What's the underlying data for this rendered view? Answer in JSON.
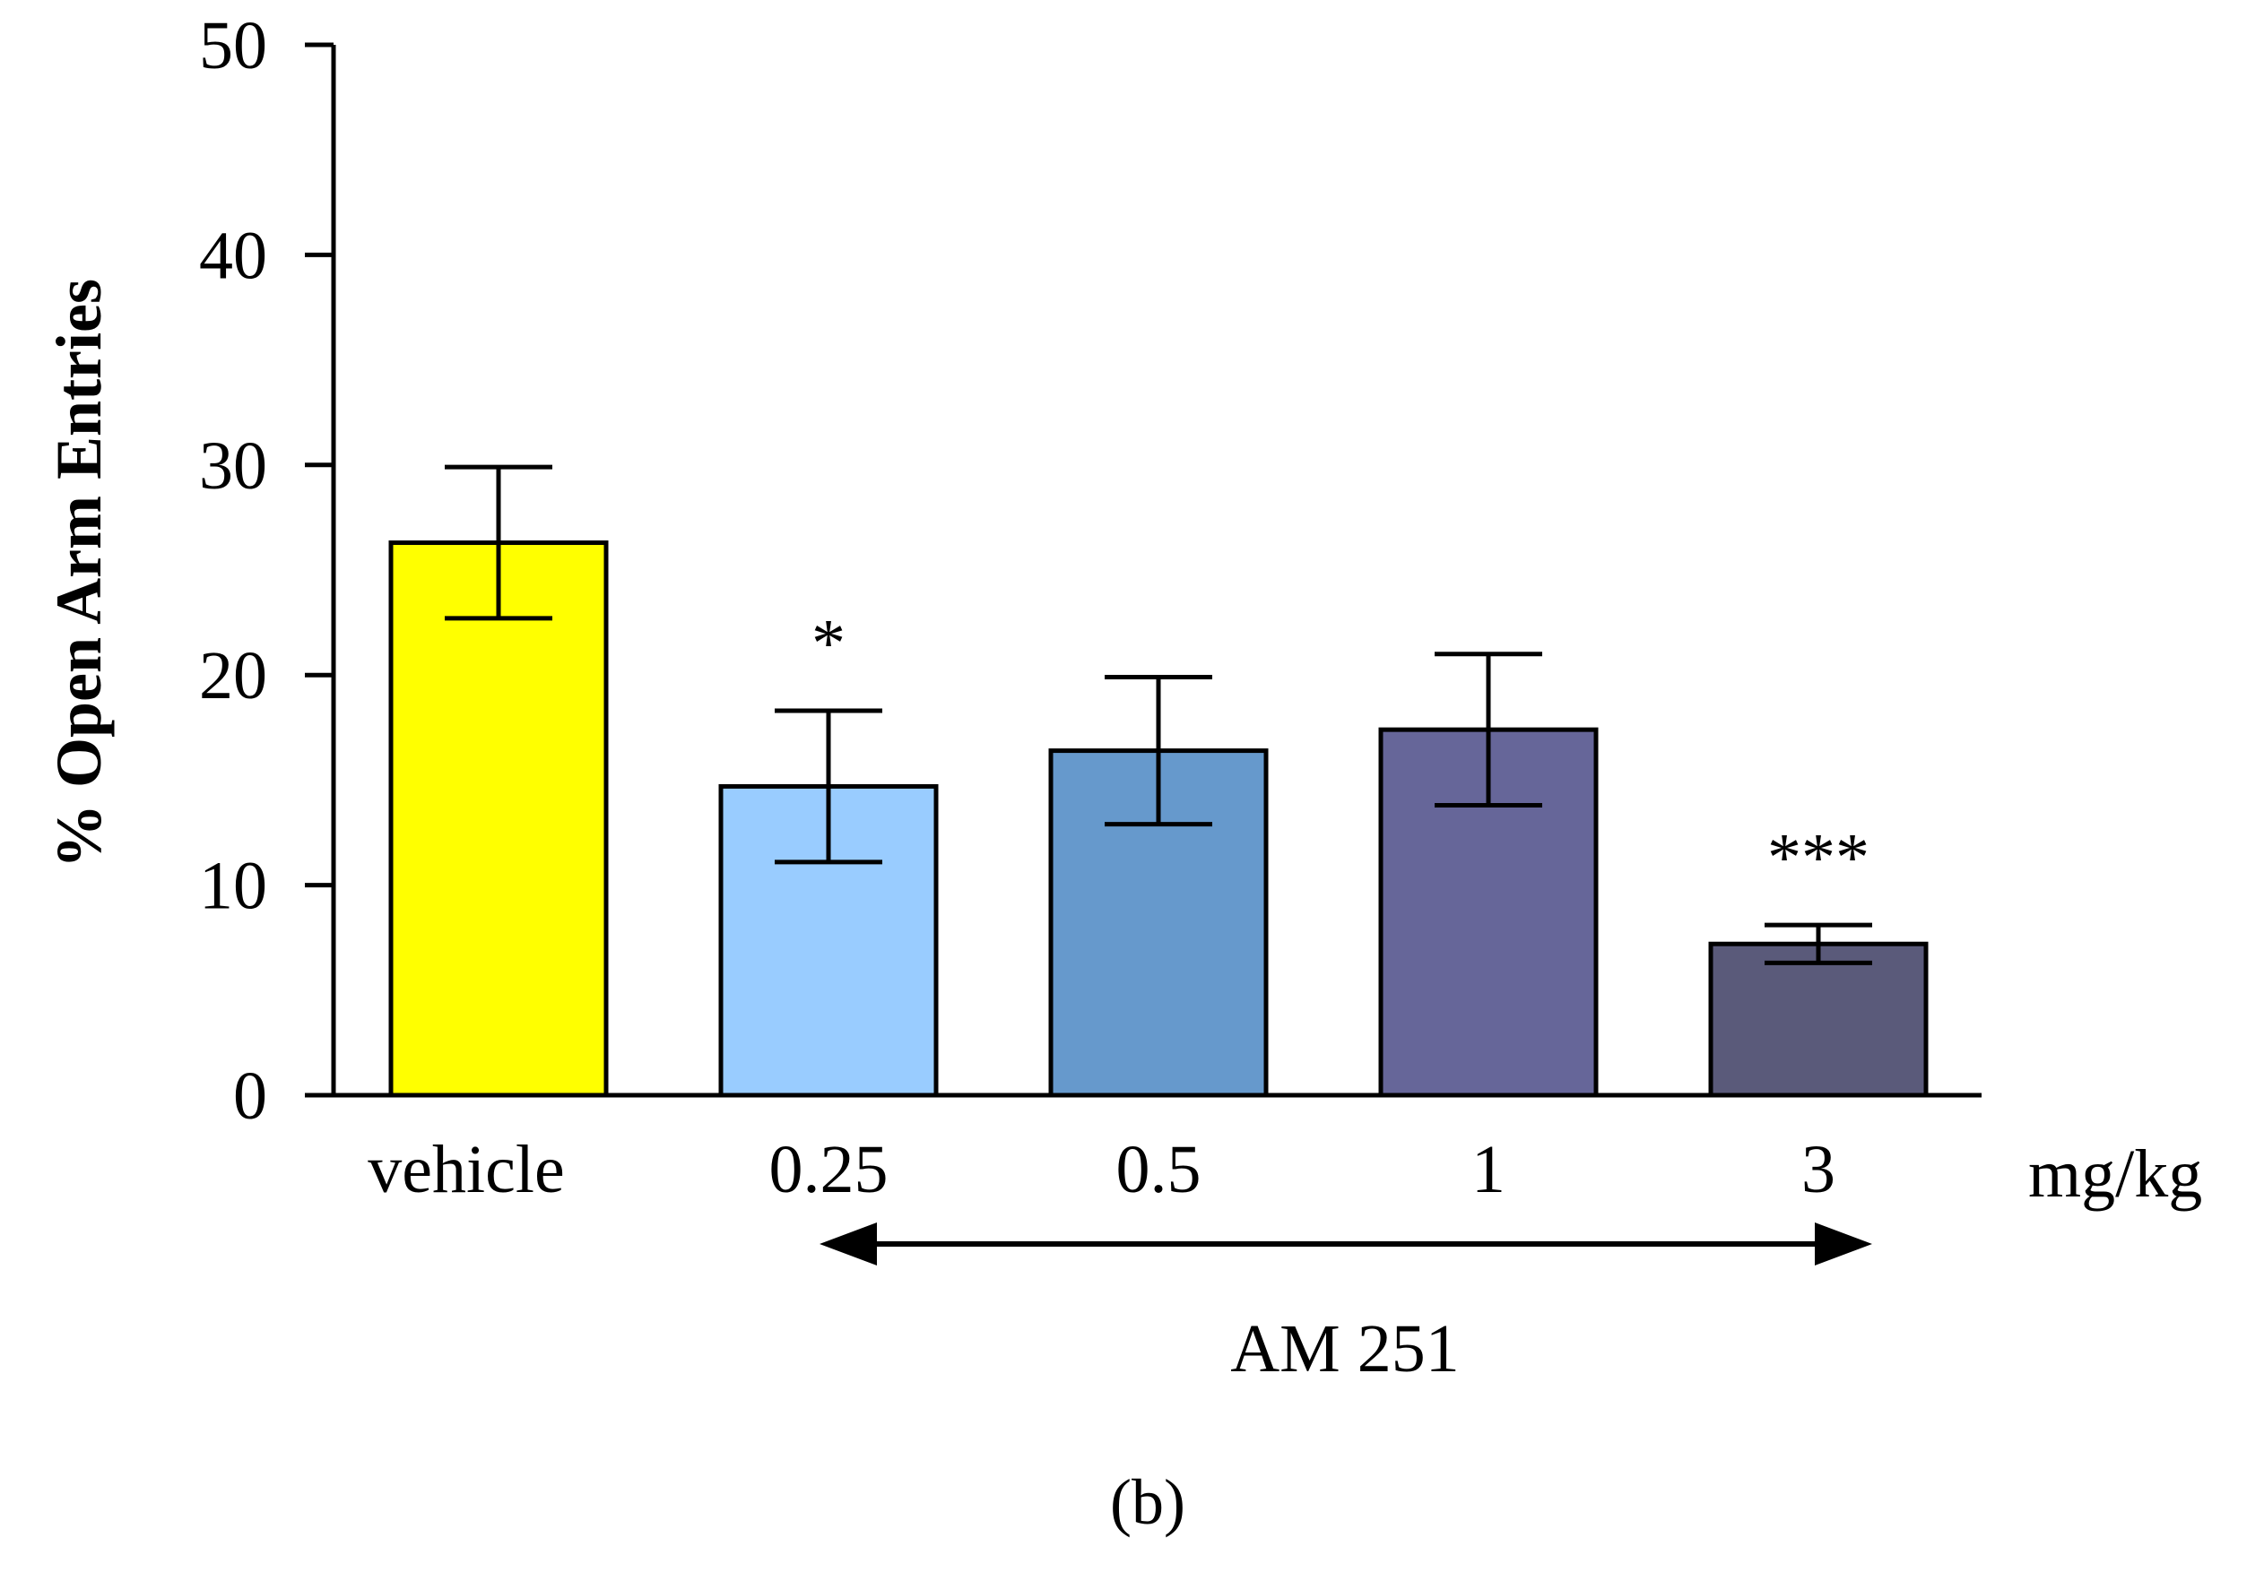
{
  "chart_data": {
    "type": "bar",
    "title": "",
    "xlabel": "",
    "ylabel": "%   Open Arm Entries",
    "ylim": [
      0,
      50
    ],
    "yticks": [
      0,
      10,
      20,
      30,
      40,
      50
    ],
    "unit_label": "mg/kg",
    "categories": [
      "vehicle",
      "0.25",
      "0.5",
      "1",
      "3"
    ],
    "values": [
      26.3,
      14.7,
      16.4,
      17.4,
      7.2
    ],
    "errors": [
      3.6,
      3.6,
      3.5,
      3.6,
      0.9
    ],
    "colors": [
      "#FFFF00",
      "#99CCFF",
      "#6699CC",
      "#666699",
      "#5A5A7A"
    ],
    "significance": [
      "",
      "*",
      "",
      "",
      "***"
    ],
    "group_label": "AM 251",
    "group_range": [
      "0.25",
      "3"
    ],
    "panel_label": "(b)",
    "grid": false
  }
}
